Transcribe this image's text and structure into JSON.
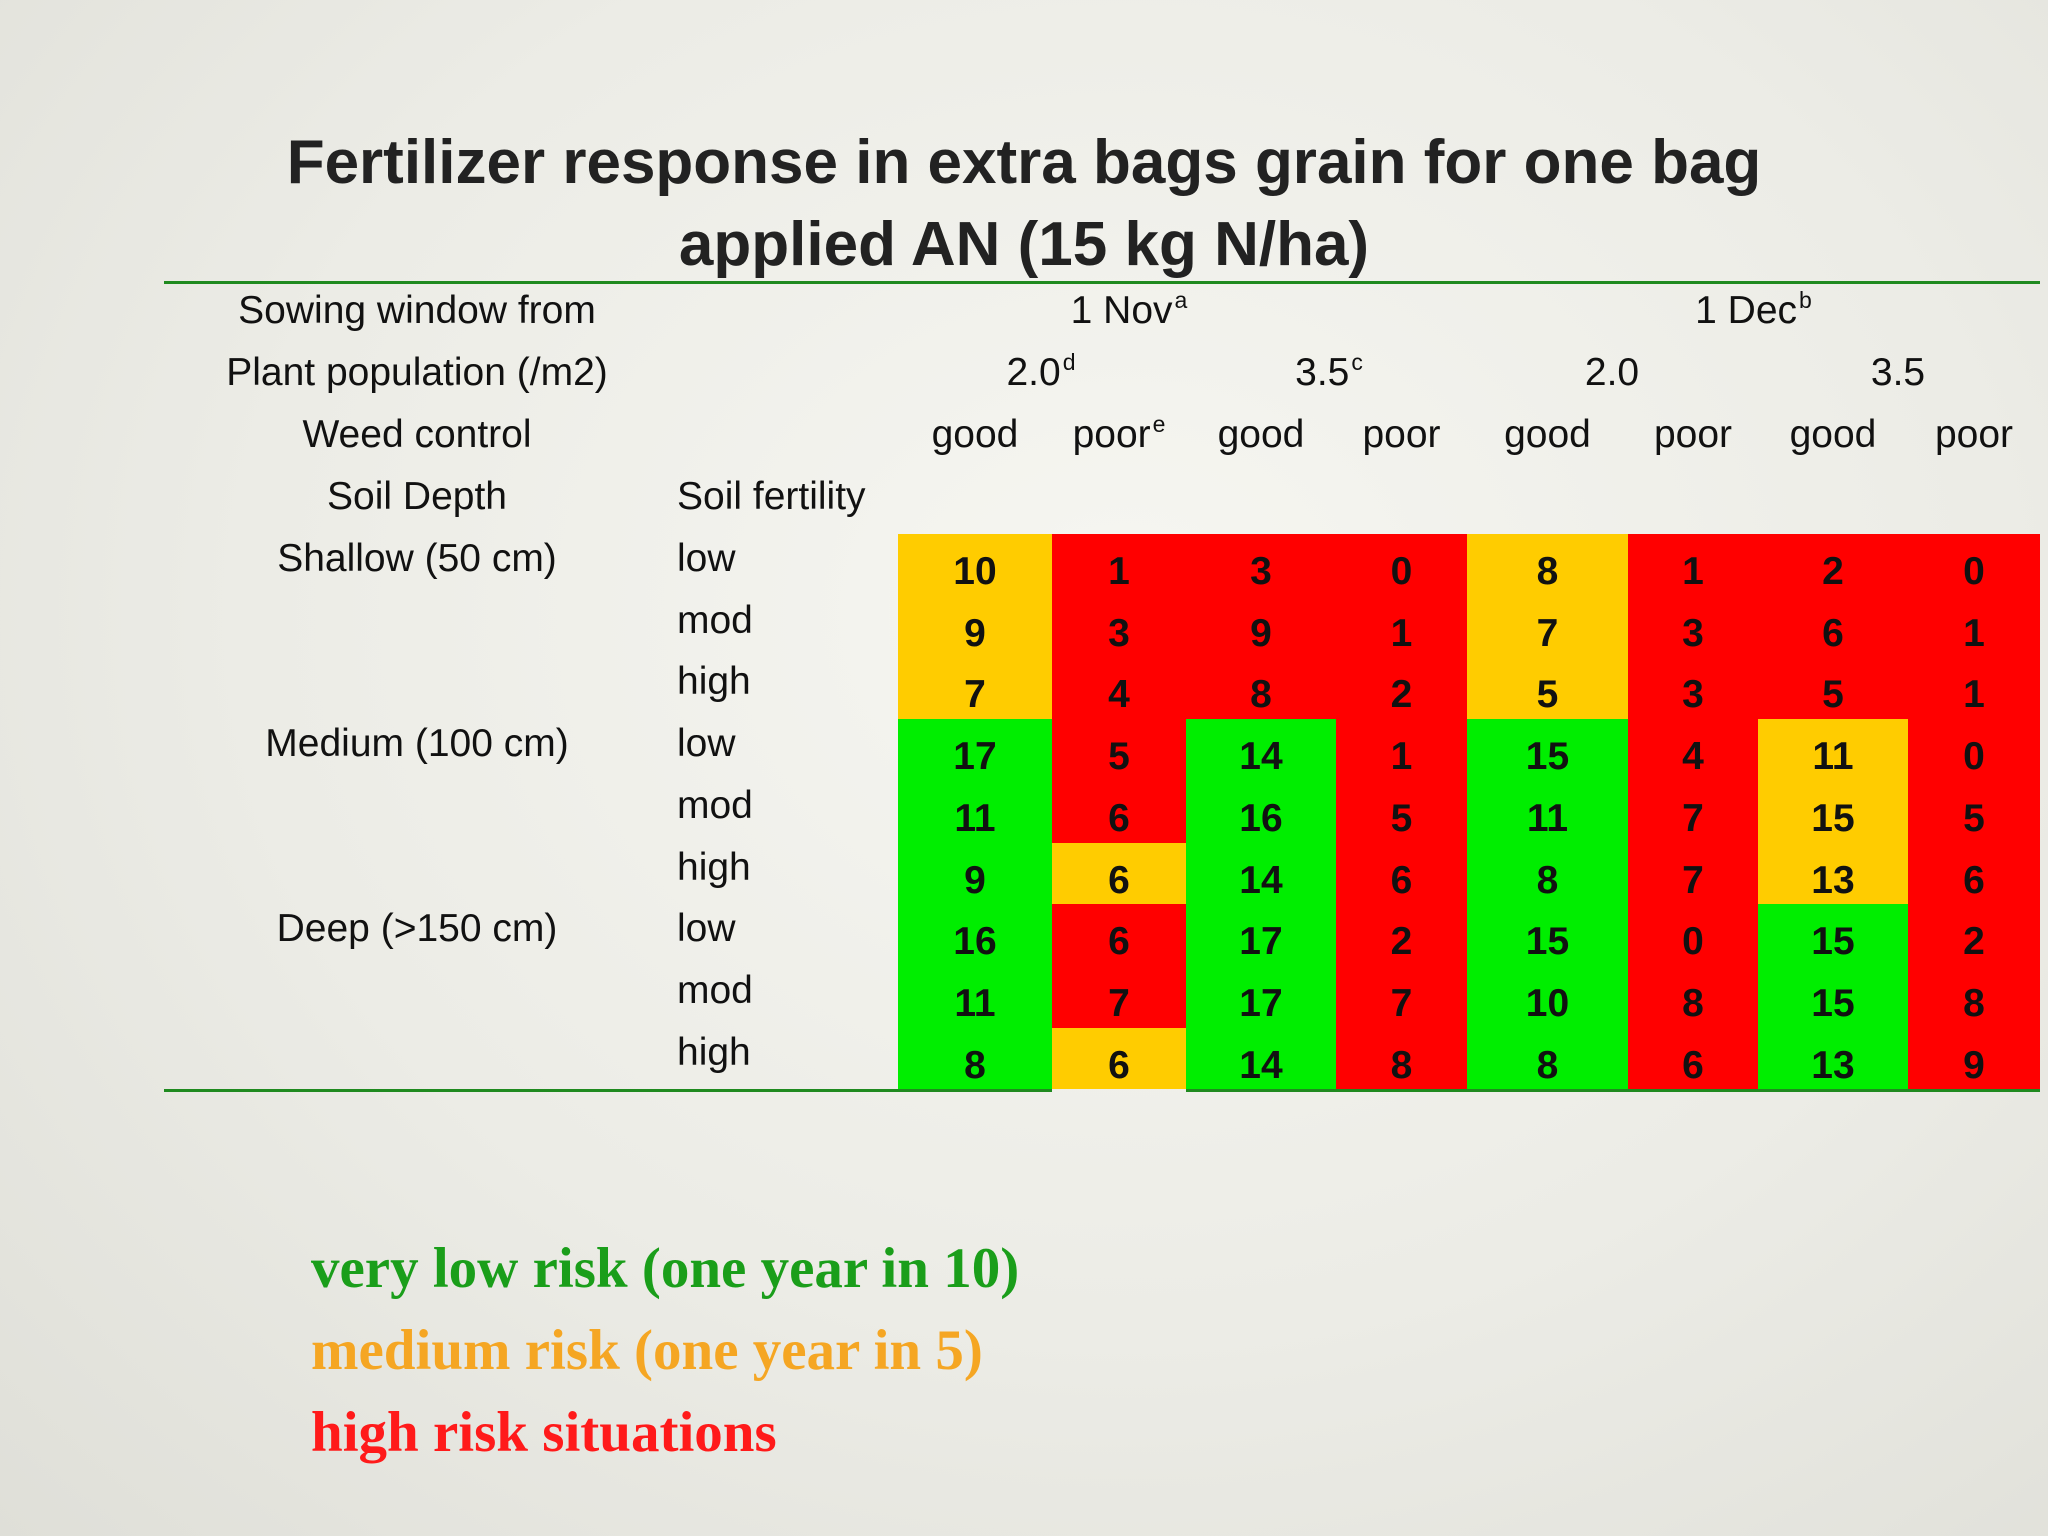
{
  "title": {
    "line1": "Fertilizer response in extra bags grain for one bag",
    "line2": "applied AN (15 kg N/ha)"
  },
  "header": {
    "sowing_label": "Sowing window from",
    "sowing_nov": "1 Nov",
    "sowing_nov_note": "a",
    "sowing_dec": "1 Dec",
    "sowing_dec_note": "b",
    "population_label": "Plant population (/m2)",
    "populations": [
      {
        "value": "2.0",
        "note": "d"
      },
      {
        "value": "3.5",
        "note": "c"
      },
      {
        "value": "2.0",
        "note": ""
      },
      {
        "value": "3.5",
        "note": ""
      }
    ],
    "weed_label": "Weed control",
    "weeds": [
      {
        "value": "good",
        "note": ""
      },
      {
        "value": "poor",
        "note": "e"
      },
      {
        "value": "good",
        "note": ""
      },
      {
        "value": "poor",
        "note": ""
      },
      {
        "value": "good",
        "note": ""
      },
      {
        "value": "poor",
        "note": ""
      },
      {
        "value": "good",
        "note": ""
      },
      {
        "value": "poor",
        "note": ""
      }
    ],
    "soil_depth_label": "Soil Depth",
    "soil_fertility_label": "Soil fertility"
  },
  "depths": [
    "Shallow (50 cm)",
    "Medium (100 cm)",
    "Deep (>150 cm)"
  ],
  "fertility_levels": [
    "low",
    "mod",
    "high",
    "low",
    "mod",
    "high",
    "low",
    "mod",
    "high"
  ],
  "colors": {
    "G": "#00ee00",
    "O": "#ffcc00",
    "R": "#ff0000"
  },
  "rows": [
    {
      "values": [
        "10",
        "1",
        "3",
        "0",
        "8",
        "1",
        "2",
        "0"
      ],
      "risk": [
        "O",
        "R",
        "R",
        "R",
        "O",
        "R",
        "R",
        "R"
      ]
    },
    {
      "values": [
        "9",
        "3",
        "9",
        "1",
        "7",
        "3",
        "6",
        "1"
      ],
      "risk": [
        "O",
        "R",
        "R",
        "R",
        "O",
        "R",
        "R",
        "R"
      ]
    },
    {
      "values": [
        "7",
        "4",
        "8",
        "2",
        "5",
        "3",
        "5",
        "1"
      ],
      "risk": [
        "O",
        "R",
        "R",
        "R",
        "O",
        "R",
        "R",
        "R"
      ]
    },
    {
      "values": [
        "17",
        "5",
        "14",
        "1",
        "15",
        "4",
        "11",
        "0"
      ],
      "risk": [
        "G",
        "R",
        "G",
        "R",
        "G",
        "R",
        "O",
        "R"
      ]
    },
    {
      "values": [
        "11",
        "6",
        "16",
        "5",
        "11",
        "7",
        "15",
        "5"
      ],
      "risk": [
        "G",
        "R",
        "G",
        "R",
        "G",
        "R",
        "O",
        "R"
      ]
    },
    {
      "values": [
        "9",
        "6",
        "14",
        "6",
        "8",
        "7",
        "13",
        "6"
      ],
      "risk": [
        "G",
        "O",
        "G",
        "R",
        "G",
        "R",
        "O",
        "R"
      ]
    },
    {
      "values": [
        "16",
        "6",
        "17",
        "2",
        "15",
        "0",
        "15",
        "2"
      ],
      "risk": [
        "G",
        "R",
        "G",
        "R",
        "G",
        "R",
        "G",
        "R"
      ]
    },
    {
      "values": [
        "11",
        "7",
        "17",
        "7",
        "10",
        "8",
        "15",
        "8"
      ],
      "risk": [
        "G",
        "R",
        "G",
        "R",
        "G",
        "R",
        "G",
        "R"
      ]
    },
    {
      "values": [
        "8",
        "6",
        "14",
        "8",
        "8",
        "6",
        "13",
        "9"
      ],
      "risk": [
        "G",
        "O",
        "G",
        "R",
        "G",
        "R",
        "G",
        "R"
      ]
    }
  ],
  "legend": [
    {
      "text": "very low risk (one year in 10)",
      "color": "#1a9e1a"
    },
    {
      "text": "medium risk (one year in 5)",
      "color": "#f5a623"
    },
    {
      "text": "high risk situations",
      "color": "#ff1a1a"
    }
  ]
}
